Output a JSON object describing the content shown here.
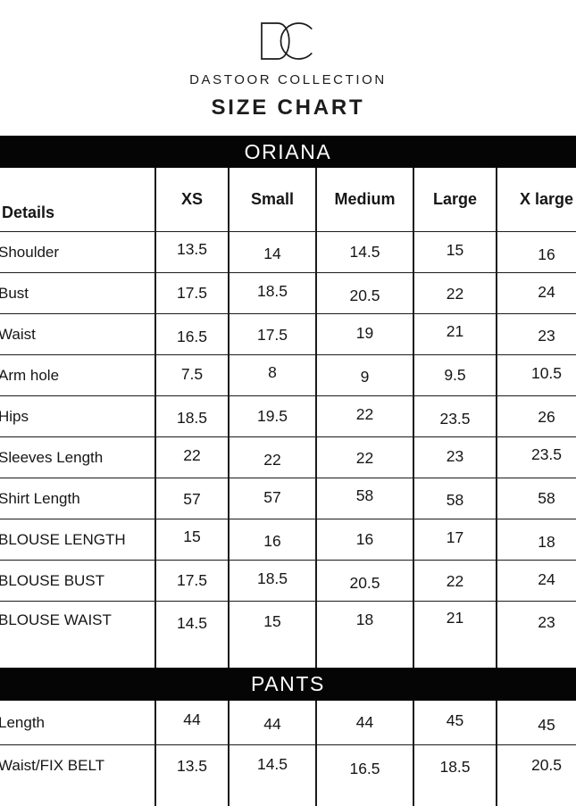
{
  "brand": {
    "logo_text": "DC",
    "name": "DASTOOR COLLECTION",
    "page_title": "SIZE CHART"
  },
  "size_chart": {
    "columns": [
      "Details",
      "XS",
      "Small",
      "Medium",
      "Large",
      "X large"
    ],
    "sections": [
      {
        "title": "ORIANA",
        "rows": [
          {
            "label": "Shoulder",
            "values": [
              "13.5",
              "14",
              "14.5",
              "15",
              "16"
            ]
          },
          {
            "label": "Bust",
            "values": [
              "17.5",
              "18.5",
              "20.5",
              "22",
              "24"
            ]
          },
          {
            "label": "Waist",
            "values": [
              "16.5",
              "17.5",
              "19",
              "21",
              "23"
            ]
          },
          {
            "label": "Arm hole",
            "values": [
              "7.5",
              "8",
              "9",
              "9.5",
              "10.5"
            ]
          },
          {
            "label": "Hips",
            "values": [
              "18.5",
              "19.5",
              "22",
              "23.5",
              "26"
            ]
          },
          {
            "label": "Sleeves Length",
            "values": [
              "22",
              "22",
              "22",
              "23",
              "23.5"
            ]
          },
          {
            "label": "Shirt Length",
            "values": [
              "57",
              "57",
              "58",
              "58",
              "58"
            ]
          },
          {
            "label": "BLOUSE LENGTH",
            "values": [
              "15",
              "16",
              "16",
              "17",
              "18"
            ]
          },
          {
            "label": "BLOUSE BUST",
            "values": [
              "17.5",
              "18.5",
              "20.5",
              "22",
              "24"
            ]
          },
          {
            "label": "BLOUSE WAIST",
            "values": [
              "14.5",
              "15",
              "18",
              "21",
              "23"
            ]
          }
        ]
      },
      {
        "title": "PANTS",
        "rows": [
          {
            "label": "Length",
            "values": [
              "44",
              "44",
              "44",
              "45",
              "45"
            ]
          },
          {
            "label": "Waist/FIX BELT",
            "values": [
              "13.5",
              "14.5",
              "16.5",
              "18.5",
              "20.5"
            ]
          }
        ]
      }
    ]
  },
  "colors": {
    "background": "#ffffff",
    "bar_background": "#050505",
    "bar_text": "#ffffff",
    "text": "#161616",
    "border": "#1b1b1b"
  }
}
